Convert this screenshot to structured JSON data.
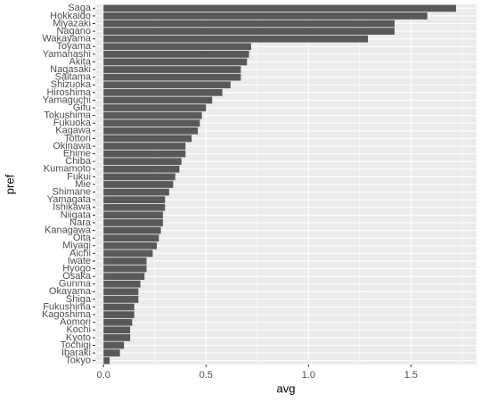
{
  "chart_data": {
    "type": "barh",
    "x_label": "avg",
    "y_label": "pref",
    "categories": [
      "Saga",
      "Hokkaido",
      "Miyazaki",
      "Nagano",
      "Wakayama",
      "Toyama",
      "Yamanashi",
      "Akita",
      "Nagasaki",
      "Saitama",
      "Shizuoka",
      "Hiroshima",
      "Yamaguchi",
      "Gifu",
      "Tokushima",
      "Fukuoka",
      "Kagawa",
      "Tottori",
      "Okinawa",
      "Ehime",
      "Chiba",
      "Kumamoto",
      "Fukui",
      "Mie",
      "Shimane",
      "Yamagata",
      "Ishikawa",
      "Niigata",
      "Nara",
      "Kanagawa",
      "Oita",
      "Miyagi",
      "Aichi",
      "Iwate",
      "Hyogo",
      "Osaka",
      "Gunma",
      "Okayama",
      "Shiga",
      "Fukushima",
      "Kagoshima",
      "Aomori",
      "Kochi",
      "Kyoto",
      "Tochigi",
      "Ibaraki",
      "Tokyo"
    ],
    "values": [
      1.72,
      1.58,
      1.42,
      1.42,
      1.29,
      0.72,
      0.71,
      0.7,
      0.67,
      0.67,
      0.62,
      0.58,
      0.53,
      0.5,
      0.48,
      0.47,
      0.46,
      0.43,
      0.4,
      0.4,
      0.38,
      0.37,
      0.35,
      0.34,
      0.32,
      0.3,
      0.3,
      0.29,
      0.29,
      0.28,
      0.27,
      0.26,
      0.24,
      0.21,
      0.21,
      0.2,
      0.18,
      0.17,
      0.17,
      0.15,
      0.15,
      0.14,
      0.13,
      0.13,
      0.1,
      0.08,
      0.03
    ],
    "color": "#595959",
    "xlim": [
      -0.04,
      1.82
    ],
    "xticks": [
      {
        "value": 0,
        "label": "0.0"
      },
      0.5,
      {
        "value": 1,
        "label": "1.0"
      },
      1.5
    ],
    "grid": true
  }
}
